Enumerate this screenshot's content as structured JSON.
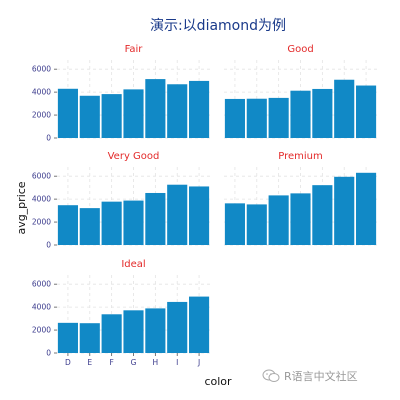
{
  "chart_data": {
    "type": "bar",
    "title": "演示:以diamond为例",
    "xlabel": "color",
    "ylabel": "avg_price",
    "categories": [
      "D",
      "E",
      "F",
      "G",
      "H",
      "I",
      "J"
    ],
    "yticks": [
      0,
      2000,
      4000,
      6000
    ],
    "ylim": [
      0,
      6800
    ],
    "grid": true,
    "bar_color": "#1189c6",
    "facet_title_color": "#e32a2a",
    "title_color": "#1a3a8a",
    "facets": [
      {
        "name": "Fair",
        "values": [
          4291,
          3682,
          3827,
          4239,
          5136,
          4685,
          4976
        ]
      },
      {
        "name": "Good",
        "values": [
          3405,
          3424,
          3496,
          4123,
          4276,
          5079,
          4574
        ]
      },
      {
        "name": "Very Good",
        "values": [
          3470,
          3215,
          3779,
          3873,
          4535,
          5256,
          5104
        ]
      },
      {
        "name": "Premium",
        "values": [
          3631,
          3539,
          4325,
          4501,
          5217,
          5946,
          6295
        ]
      },
      {
        "name": "Ideal",
        "values": [
          2629,
          2598,
          3375,
          3721,
          3889,
          4452,
          4918
        ]
      }
    ]
  },
  "watermark": {
    "text": "R语言中文社区",
    "icon": "wechat-icon"
  }
}
